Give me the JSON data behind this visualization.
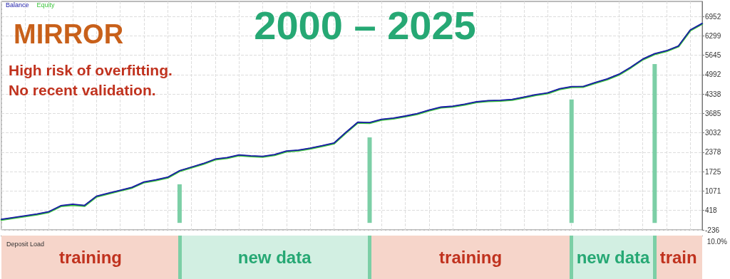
{
  "chart_data": [
    {
      "type": "line",
      "title": "2000 – 2025",
      "subtitle": "MIRROR",
      "annotations": [
        "High risk of overfitting.",
        "No recent validation."
      ],
      "categories": [
        null,
        null,
        null,
        null,
        null,
        null,
        null,
        null,
        null,
        null,
        null,
        null,
        null,
        null,
        null,
        null,
        null,
        null,
        null,
        null,
        null,
        null,
        null,
        null,
        null,
        null,
        null,
        null,
        null,
        null,
        null,
        null,
        null,
        null,
        null,
        null,
        null,
        null,
        null,
        null,
        null,
        null,
        null,
        null,
        null,
        null,
        null,
        null,
        null,
        null,
        null,
        null,
        null,
        null,
        null,
        null,
        null,
        null,
        null,
        null
      ],
      "series": [
        {
          "name": "Equity",
          "color": "#3cc43c",
          "values": [
            100,
            160,
            220,
            280,
            360,
            560,
            600,
            570,
            880,
            980,
            1080,
            1180,
            1360,
            1430,
            1520,
            1740,
            1860,
            1980,
            2130,
            2180,
            2270,
            2240,
            2220,
            2280,
            2400,
            2430,
            2500,
            2580,
            2670,
            3030,
            3370,
            3360,
            3470,
            3510,
            3580,
            3660,
            3780,
            3880,
            3910,
            3980,
            4060,
            4100,
            4110,
            4140,
            4220,
            4300,
            4360,
            4500,
            4570,
            4580,
            4710,
            4830,
            4990,
            5230,
            5500,
            5680,
            5780,
            5940,
            6480,
            6700
          ]
        },
        {
          "name": "Balance",
          "color": "#1a1aa8",
          "values": [
            120,
            180,
            240,
            300,
            380,
            580,
            630,
            590,
            900,
            1000,
            1100,
            1200,
            1380,
            1450,
            1540,
            1760,
            1880,
            2000,
            2150,
            2200,
            2290,
            2260,
            2240,
            2300,
            2420,
            2450,
            2520,
            2600,
            2690,
            3050,
            3390,
            3380,
            3490,
            3530,
            3600,
            3680,
            3800,
            3900,
            3930,
            4000,
            4080,
            4120,
            4130,
            4160,
            4240,
            4320,
            4380,
            4520,
            4590,
            4600,
            4730,
            4850,
            5010,
            5250,
            5520,
            5700,
            5800,
            5960,
            6500,
            6720
          ]
        },
        {
          "type": "bar",
          "color": "#7ccfa6",
          "values": [
            null,
            null,
            null,
            null,
            null,
            null,
            null,
            null,
            null,
            null,
            null,
            null,
            null,
            null,
            null,
            1300,
            null,
            null,
            null,
            null,
            null,
            null,
            null,
            null,
            null,
            null,
            null,
            null,
            null,
            null,
            null,
            2880,
            null,
            null,
            null,
            null,
            null,
            null,
            null,
            null,
            null,
            null,
            null,
            null,
            null,
            null,
            null,
            null,
            4160,
            null,
            null,
            null,
            null,
            null,
            null,
            5350,
            null,
            null,
            null,
            null
          ]
        }
      ],
      "ylim": [
        -236,
        7460
      ],
      "yticks": [
        -236,
        418,
        1071,
        1725,
        2378,
        3032,
        3685,
        4338,
        4992,
        5645,
        6299,
        6952
      ],
      "grid": true,
      "legend": "top left",
      "marker": "none",
      "line_style": "solid"
    },
    {
      "type": "other",
      "title": "Deposit Load",
      "annotations": [
        "training",
        "new data",
        "training",
        "new data",
        "train",
        "10.0%"
      ]
    }
  ]
}
